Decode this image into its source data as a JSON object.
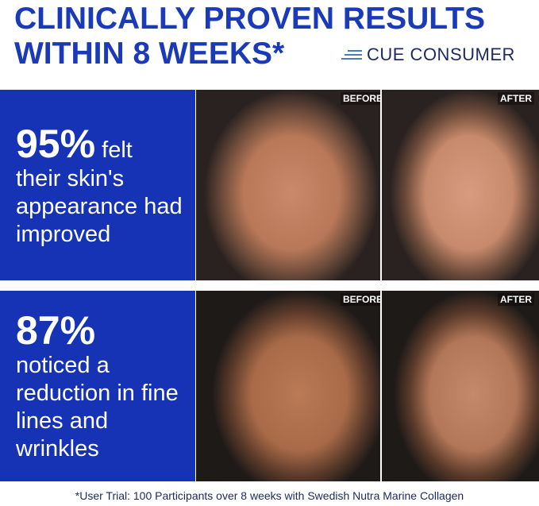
{
  "header": {
    "line1": "CLINICALLY PROVEN RESULTS",
    "line2": "WITHIN 8 WEEKS*",
    "logo": "CUE CONSUMER"
  },
  "colors": {
    "brand_blue": "#1633b5",
    "logo_navy": "#1d2a5a"
  },
  "results": [
    {
      "percent": "95%",
      "text_inline": " felt",
      "text": "their skin's appearance had improved",
      "before_label": "BEFORE",
      "after_label": "AFTER"
    },
    {
      "percent": "87%",
      "text": "noticed a reduction in fine lines and wrinkles",
      "before_label": "BEFORE",
      "after_label": "AFTER"
    }
  ],
  "footnote": "*User Trial: 100 Participants over 8 weeks with Swedish Nutra Marine Collagen"
}
